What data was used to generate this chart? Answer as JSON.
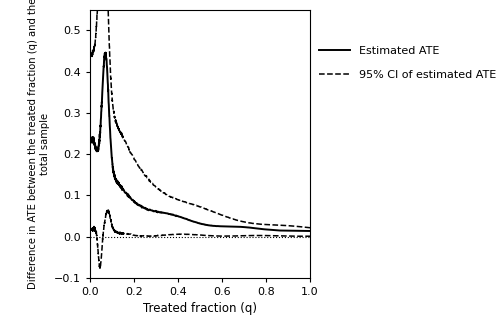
{
  "xlabel": "Treated fraction (q)",
  "ylabel": "Difference in ATE between the treated fraction (q) and the\ntotal sample",
  "xlim": [
    0,
    1
  ],
  "ylim": [
    -0.1,
    0.55
  ],
  "yticks": [
    -0.1,
    0.0,
    0.1,
    0.2,
    0.3,
    0.4,
    0.5
  ],
  "xticks": [
    0.0,
    0.2,
    0.4,
    0.6,
    0.8,
    1.0
  ],
  "legend_entries": [
    "Estimated ATE",
    "95% CI of estimated ATE"
  ],
  "line_color": "#000000",
  "background_color": "#ffffff"
}
